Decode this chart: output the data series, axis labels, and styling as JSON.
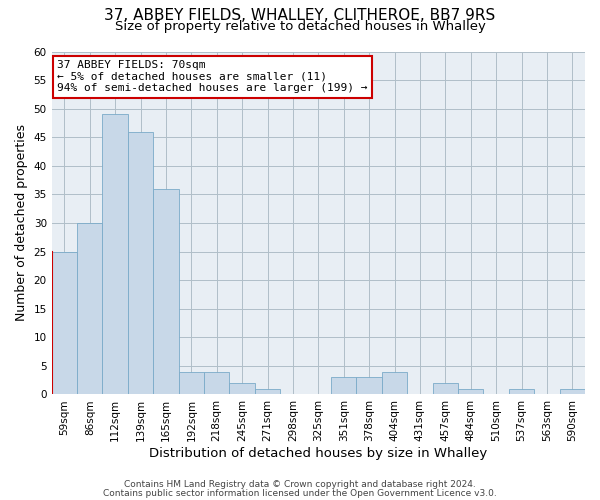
{
  "title": "37, ABBEY FIELDS, WHALLEY, CLITHEROE, BB7 9RS",
  "subtitle": "Size of property relative to detached houses in Whalley",
  "xlabel": "Distribution of detached houses by size in Whalley",
  "ylabel": "Number of detached properties",
  "bin_labels": [
    "59sqm",
    "86sqm",
    "112sqm",
    "139sqm",
    "165sqm",
    "192sqm",
    "218sqm",
    "245sqm",
    "271sqm",
    "298sqm",
    "325sqm",
    "351sqm",
    "378sqm",
    "404sqm",
    "431sqm",
    "457sqm",
    "484sqm",
    "510sqm",
    "537sqm",
    "563sqm",
    "590sqm"
  ],
  "bar_values": [
    25,
    30,
    49,
    46,
    36,
    4,
    4,
    2,
    1,
    0,
    0,
    3,
    3,
    4,
    0,
    2,
    1,
    0,
    1,
    0,
    1
  ],
  "bar_color": "#c8d8e8",
  "bar_edge_color": "#7aaac8",
  "highlight_edge_color": "#cc0000",
  "ylim": [
    0,
    60
  ],
  "yticks": [
    0,
    5,
    10,
    15,
    20,
    25,
    30,
    35,
    40,
    45,
    50,
    55,
    60
  ],
  "annotation_title": "37 ABBEY FIELDS: 70sqm",
  "annotation_line1": "← 5% of detached houses are smaller (11)",
  "annotation_line2": "94% of semi-detached houses are larger (199) →",
  "annotation_box_color": "#ffffff",
  "annotation_box_edge": "#cc0000",
  "footer_line1": "Contains HM Land Registry data © Crown copyright and database right 2024.",
  "footer_line2": "Contains public sector information licensed under the Open Government Licence v3.0.",
  "plot_bg_color": "#e8eef4",
  "fig_bg_color": "#ffffff",
  "grid_color": "#b0bec8",
  "title_fontsize": 11,
  "subtitle_fontsize": 9.5,
  "ylabel_fontsize": 9,
  "xlabel_fontsize": 9.5,
  "annotation_fontsize": 8,
  "tick_fontsize": 7.5,
  "footer_fontsize": 6.5
}
